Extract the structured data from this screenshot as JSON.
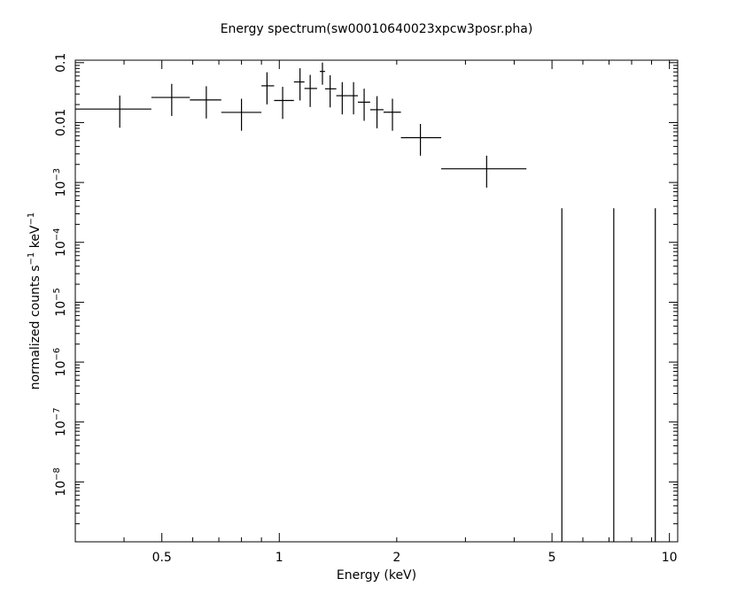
{
  "chart_data": {
    "type": "scatter",
    "title": "Energy spectrum(sw00010640023xpcw3posr.pha)",
    "xlabel": "Energy (keV)",
    "ylabel": "normalized counts s^-1 keV^-1",
    "x_scale": "log",
    "y_scale": "log",
    "xlim": [
      0.3,
      10.5
    ],
    "ylim": [
      1e-09,
      0.11
    ],
    "x_tick_labels": [
      {
        "value": 0.5,
        "label": "0.5"
      },
      {
        "value": 1,
        "label": "1"
      },
      {
        "value": 2,
        "label": "2"
      },
      {
        "value": 5,
        "label": "5"
      },
      {
        "value": 10,
        "label": "10"
      }
    ],
    "y_tick_labels": [
      {
        "value": 0.1,
        "mant": "0.1",
        "exp": ""
      },
      {
        "value": 0.01,
        "mant": "0.01",
        "exp": ""
      },
      {
        "value": 0.001,
        "mant": "10",
        "exp": "−3"
      },
      {
        "value": 0.0001,
        "mant": "10",
        "exp": "−4"
      },
      {
        "value": 1e-05,
        "mant": "10",
        "exp": "−5"
      },
      {
        "value": 1e-06,
        "mant": "10",
        "exp": "−6"
      },
      {
        "value": 1e-07,
        "mant": "10",
        "exp": "−7"
      },
      {
        "value": 1e-08,
        "mant": "10",
        "exp": "−8"
      }
    ],
    "grid": false,
    "legend": "none",
    "series": [
      {
        "points": [
          {
            "x": 0.39,
            "xlo": 0.3,
            "xhi": 0.47,
            "y": 0.0168,
            "ylo": 0.0082,
            "yhi": 0.0283
          },
          {
            "x": 0.53,
            "xlo": 0.47,
            "xhi": 0.59,
            "y": 0.0263,
            "ylo": 0.0129,
            "yhi": 0.0443
          },
          {
            "x": 0.65,
            "xlo": 0.59,
            "xhi": 0.71,
            "y": 0.0239,
            "ylo": 0.0117,
            "yhi": 0.0404
          },
          {
            "x": 0.8,
            "xlo": 0.71,
            "xhi": 0.9,
            "y": 0.0148,
            "ylo": 0.0073,
            "yhi": 0.025
          },
          {
            "x": 0.93,
            "xlo": 0.9,
            "xhi": 0.97,
            "y": 0.0411,
            "ylo": 0.0201,
            "yhi": 0.0692
          },
          {
            "x": 1.02,
            "xlo": 0.97,
            "xhi": 1.09,
            "y": 0.0234,
            "ylo": 0.0115,
            "yhi": 0.0395
          },
          {
            "x": 1.13,
            "xlo": 1.09,
            "xhi": 1.16,
            "y": 0.0477,
            "ylo": 0.0234,
            "yhi": 0.0806
          },
          {
            "x": 1.2,
            "xlo": 1.16,
            "xhi": 1.25,
            "y": 0.0371,
            "ylo": 0.0182,
            "yhi": 0.0626
          },
          {
            "x": 1.29,
            "xlo": 1.27,
            "xhi": 1.31,
            "y": 0.0714,
            "ylo": 0.0429,
            "yhi": 0.1005
          },
          {
            "x": 1.35,
            "xlo": 1.31,
            "xhi": 1.4,
            "y": 0.0366,
            "ylo": 0.0179,
            "yhi": 0.0616
          },
          {
            "x": 1.45,
            "xlo": 1.4,
            "xhi": 1.5,
            "y": 0.0281,
            "ylo": 0.0137,
            "yhi": 0.0473
          },
          {
            "x": 1.55,
            "xlo": 1.5,
            "xhi": 1.59,
            "y": 0.0281,
            "ylo": 0.0137,
            "yhi": 0.0473
          },
          {
            "x": 1.65,
            "xlo": 1.59,
            "xhi": 1.71,
            "y": 0.0219,
            "ylo": 0.0107,
            "yhi": 0.0368
          },
          {
            "x": 1.78,
            "xlo": 1.71,
            "xhi": 1.85,
            "y": 0.0164,
            "ylo": 0.008,
            "yhi": 0.0276
          },
          {
            "x": 1.95,
            "xlo": 1.85,
            "xhi": 2.05,
            "y": 0.0149,
            "ylo": 0.0073,
            "yhi": 0.025
          },
          {
            "x": 2.3,
            "xlo": 2.05,
            "xhi": 2.6,
            "y": 0.0056,
            "ylo": 0.0028,
            "yhi": 0.0095
          },
          {
            "x": 3.4,
            "xlo": 2.6,
            "xhi": 4.3,
            "y": 0.00169,
            "ylo": 0.00082,
            "yhi": 0.0028
          },
          {
            "x": 5.3,
            "xlo": 5.3,
            "xhi": 5.3,
            "y": 1e-09,
            "ylo": 1e-09,
            "yhi": 0.00037
          },
          {
            "x": 7.2,
            "xlo": 7.2,
            "xhi": 7.2,
            "y": 1e-09,
            "ylo": 1e-09,
            "yhi": 0.00037
          },
          {
            "x": 9.2,
            "xlo": 9.2,
            "xhi": 9.2,
            "y": 1e-09,
            "ylo": 1e-09,
            "yhi": 0.00037
          }
        ]
      }
    ]
  }
}
